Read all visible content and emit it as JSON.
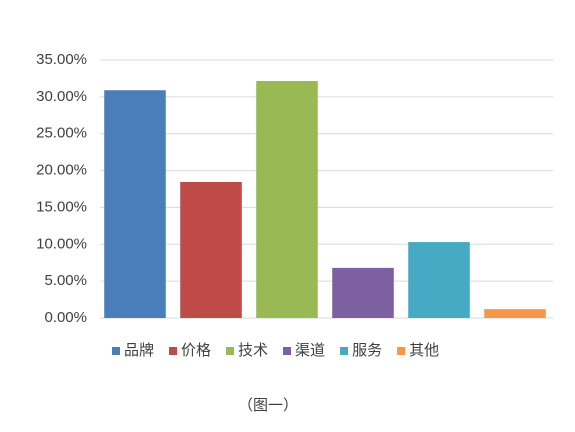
{
  "chart_data": {
    "type": "bar",
    "categories": [
      "品牌",
      "价格",
      "技术",
      "渠道",
      "服务",
      "其他"
    ],
    "values": [
      30.9,
      18.45,
      32.15,
      6.8,
      10.3,
      1.2
    ],
    "colors": [
      "#4a7ebb",
      "#be4b48",
      "#98b954",
      "#7d60a0",
      "#46aac5",
      "#f79646"
    ],
    "ylim": [
      0,
      35
    ],
    "yticks": [
      {
        "value": 0,
        "label": "0.00%"
      },
      {
        "value": 5,
        "label": "5.00%"
      },
      {
        "value": 10,
        "label": "10.00%"
      },
      {
        "value": 15,
        "label": "15.00%"
      },
      {
        "value": 20,
        "label": "20.00%"
      },
      {
        "value": 25,
        "label": "25.00%"
      },
      {
        "value": 30,
        "label": "30.00%"
      },
      {
        "value": 35,
        "label": "35.00%"
      }
    ],
    "grid": true,
    "legend": "bottom",
    "caption": "（图一）"
  }
}
